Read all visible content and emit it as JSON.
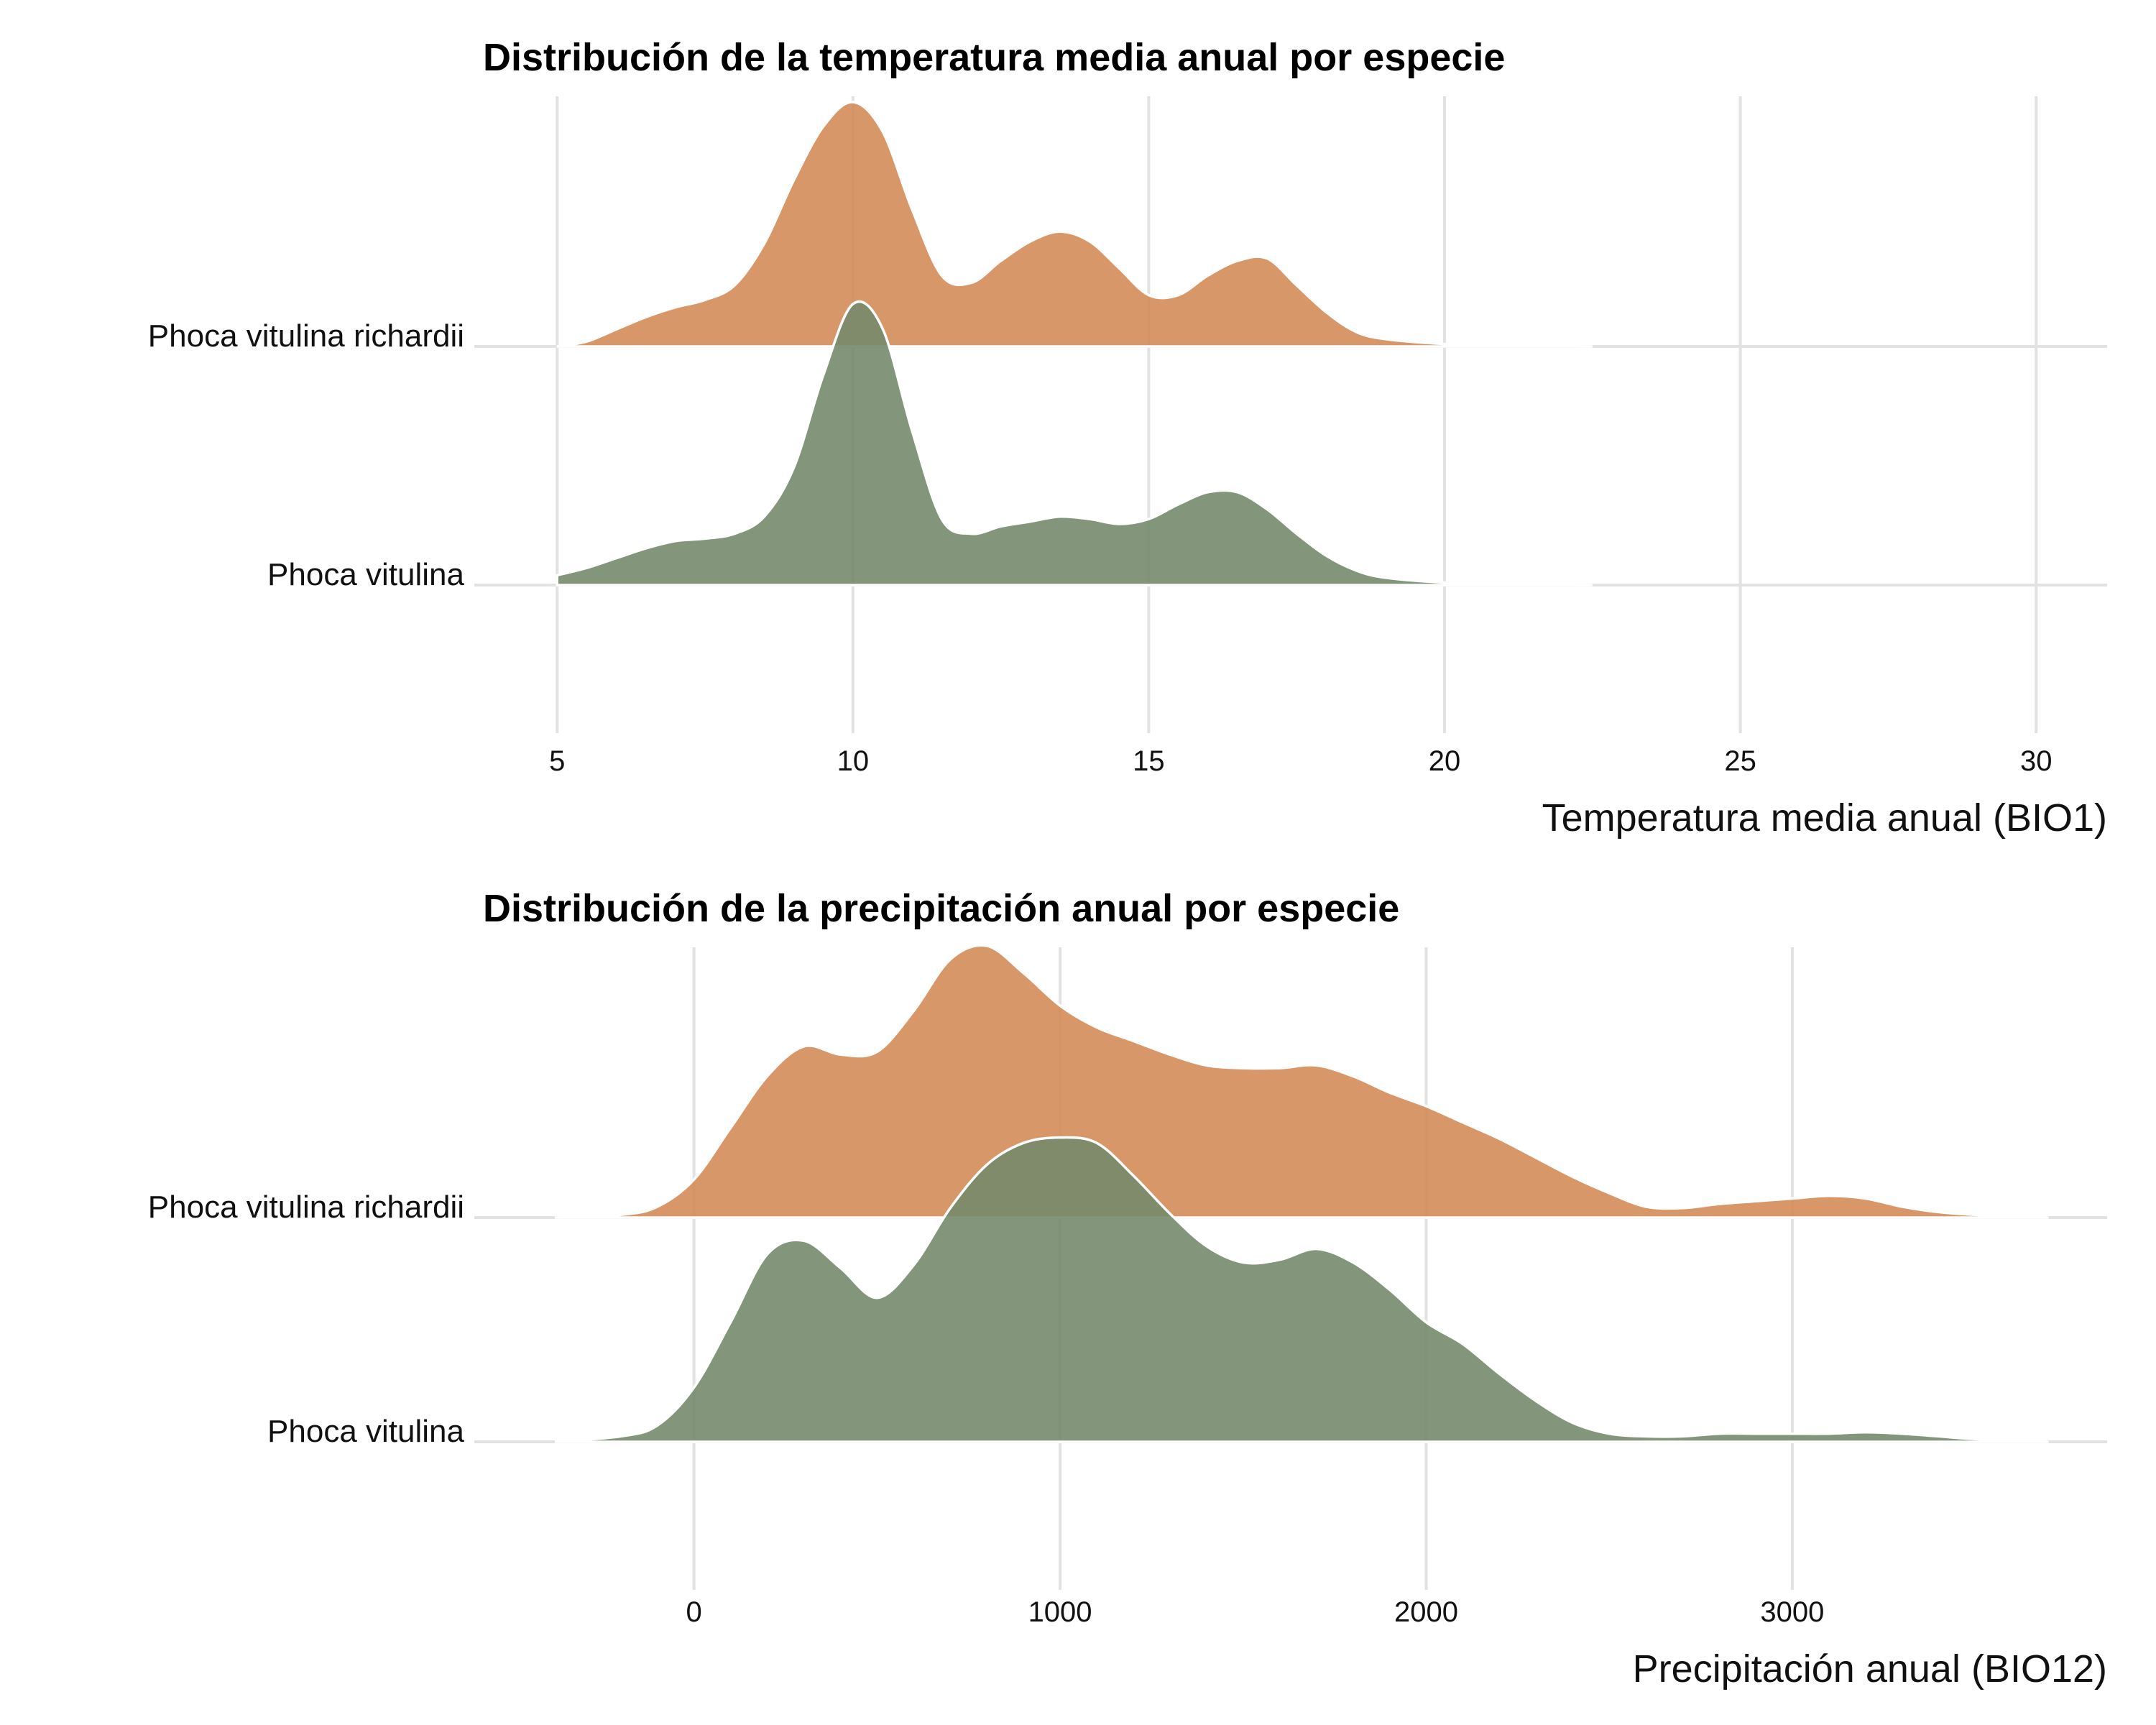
{
  "chart_data": [
    {
      "type": "area",
      "subtype": "ridgeline-density",
      "title": "Distribución de la temperatura media anual por especie",
      "xlabel": "Temperatura media anual (BIO1)",
      "ylabel": "",
      "xlim": [
        3.6,
        31.2
      ],
      "x_ticks": [
        5,
        10,
        15,
        20,
        25,
        30
      ],
      "grid": true,
      "series": [
        {
          "name": "Phoca vitulina richardii",
          "color": "#d48c58",
          "x": [
            5,
            5.5,
            6,
            6.5,
            7,
            7.5,
            8,
            8.5,
            9,
            9.5,
            10,
            10.5,
            11,
            11.5,
            12,
            12.5,
            13,
            13.5,
            14,
            14.5,
            15,
            15.5,
            16,
            16.5,
            17,
            17.5,
            18,
            18.5,
            19,
            20,
            21,
            22.5
          ],
          "y": [
            0.0,
            0.02,
            0.07,
            0.12,
            0.16,
            0.19,
            0.25,
            0.42,
            0.68,
            0.9,
            1.0,
            0.88,
            0.56,
            0.29,
            0.26,
            0.35,
            0.43,
            0.47,
            0.43,
            0.32,
            0.21,
            0.21,
            0.29,
            0.35,
            0.36,
            0.25,
            0.14,
            0.06,
            0.03,
            0.01,
            0.005,
            0.0
          ]
        },
        {
          "name": "Phoca vitulina",
          "color": "#75896b",
          "x": [
            5,
            5.5,
            6,
            6.5,
            7,
            7.5,
            8,
            8.5,
            9,
            9.5,
            10,
            10.5,
            11,
            11.5,
            12,
            12.5,
            13,
            13.5,
            14,
            14.5,
            15,
            15.5,
            16,
            16.5,
            17,
            17.5,
            18,
            18.5,
            19,
            20,
            21,
            22.5
          ],
          "y": [
            0.04,
            0.07,
            0.11,
            0.15,
            0.18,
            0.19,
            0.21,
            0.28,
            0.48,
            0.86,
            1.15,
            1.05,
            0.63,
            0.27,
            0.21,
            0.24,
            0.26,
            0.28,
            0.27,
            0.25,
            0.27,
            0.33,
            0.38,
            0.38,
            0.31,
            0.21,
            0.12,
            0.06,
            0.03,
            0.01,
            0.005,
            0.0
          ]
        }
      ]
    },
    {
      "type": "area",
      "subtype": "ridgeline-density",
      "title": "Distribución de la precipitación anual por especie",
      "xlabel": "Precipitación anual (BIO12)",
      "ylabel": "",
      "xlim": [
        -600,
        3860
      ],
      "x_ticks": [
        0,
        1000,
        2000,
        3000
      ],
      "grid": true,
      "series": [
        {
          "name": "Phoca vitulina richardii",
          "color": "#d48c58",
          "x": [
            -380,
            -200,
            -100,
            0,
            100,
            200,
            300,
            400,
            500,
            600,
            700,
            800,
            900,
            1000,
            1100,
            1200,
            1300,
            1400,
            1500,
            1600,
            1700,
            1800,
            1900,
            2000,
            2100,
            2200,
            2300,
            2400,
            2500,
            2600,
            2700,
            2800,
            2900,
            3000,
            3100,
            3200,
            3300,
            3400,
            3500,
            3700
          ],
          "y": [
            0.0,
            0.01,
            0.04,
            0.14,
            0.33,
            0.52,
            0.63,
            0.6,
            0.61,
            0.76,
            0.95,
            1.0,
            0.9,
            0.78,
            0.7,
            0.65,
            0.6,
            0.56,
            0.55,
            0.55,
            0.56,
            0.52,
            0.46,
            0.41,
            0.35,
            0.29,
            0.22,
            0.15,
            0.09,
            0.04,
            0.035,
            0.05,
            0.06,
            0.07,
            0.08,
            0.07,
            0.04,
            0.02,
            0.01,
            0.0
          ]
        },
        {
          "name": "Phoca vitulina",
          "color": "#75896b",
          "x": [
            -380,
            -200,
            -100,
            0,
            100,
            200,
            300,
            400,
            500,
            600,
            700,
            800,
            900,
            1000,
            1100,
            1200,
            1300,
            1400,
            1500,
            1600,
            1700,
            1800,
            1900,
            2000,
            2100,
            2200,
            2300,
            2400,
            2500,
            2600,
            2700,
            2800,
            2900,
            3000,
            3100,
            3200,
            3300,
            3400,
            3500,
            3700
          ],
          "y": [
            0.0,
            0.02,
            0.06,
            0.2,
            0.44,
            0.69,
            0.74,
            0.64,
            0.53,
            0.65,
            0.86,
            1.02,
            1.1,
            1.12,
            1.1,
            0.98,
            0.84,
            0.72,
            0.66,
            0.67,
            0.71,
            0.66,
            0.56,
            0.44,
            0.36,
            0.25,
            0.15,
            0.07,
            0.03,
            0.02,
            0.02,
            0.03,
            0.03,
            0.03,
            0.03,
            0.035,
            0.03,
            0.02,
            0.01,
            0.0
          ]
        }
      ]
    }
  ]
}
